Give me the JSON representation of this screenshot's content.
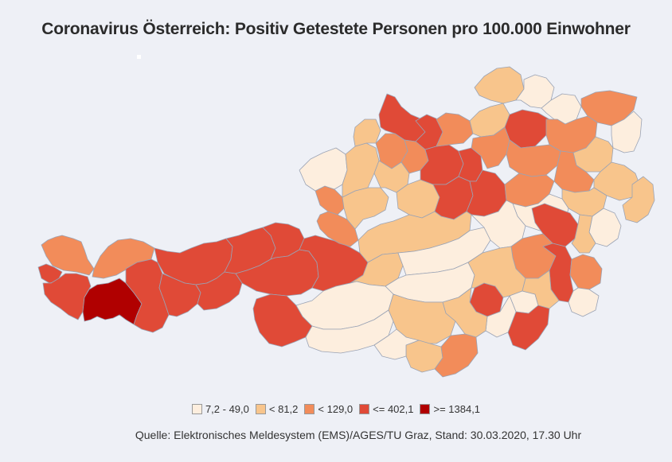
{
  "title": "Coronavirus Österreich: Positiv Getestete Personen pro 100.000 Einwohner",
  "legend": [
    {
      "label": "7,2 - 49,0",
      "color": "#fdeede"
    },
    {
      "label": "< 81,2",
      "color": "#f8c58c"
    },
    {
      "label": "< 129,0",
      "color": "#f28c5a"
    },
    {
      "label": "<= 402,1",
      "color": "#e04a37"
    },
    {
      "label": ">= 1384,1",
      "color": "#b00000"
    }
  ],
  "source": "Quelle: Elektronisches Meldesystem (EMS)/AGES/TU Graz, Stand: 30.03.2020, 17.30 Uhr"
}
